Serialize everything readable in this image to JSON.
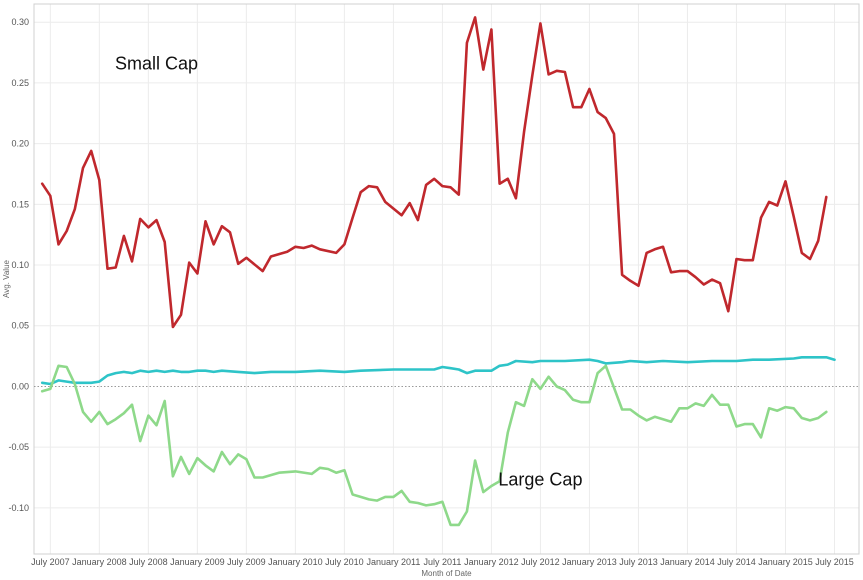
{
  "chart_data": {
    "type": "line",
    "xlabel": "Month of Date",
    "ylabel": "Avg. Value",
    "ylim": [
      -0.138,
      0.315
    ],
    "xlim": [
      "2007-05",
      "2015-10"
    ],
    "grid": true,
    "legend": "none",
    "y_ticks": [
      0.3,
      0.25,
      0.2,
      0.15,
      0.1,
      0.05,
      0.0,
      -0.05,
      -0.1
    ],
    "y_tick_labels": [
      "0.30",
      "0.25",
      "0.20",
      "0.15",
      "0.10",
      "0.05",
      "0.00",
      "-0.05",
      "-0.10"
    ],
    "x_ticks": [
      {
        "date": "2007-07",
        "label": "July 2007"
      },
      {
        "date": "2008-01",
        "label": "January 2008"
      },
      {
        "date": "2008-07",
        "label": "July 2008"
      },
      {
        "date": "2009-01",
        "label": "January 2009"
      },
      {
        "date": "2009-07",
        "label": "July 2009"
      },
      {
        "date": "2010-01",
        "label": "January 2010"
      },
      {
        "date": "2010-07",
        "label": "July 2010"
      },
      {
        "date": "2011-01",
        "label": "January 2011"
      },
      {
        "date": "2011-07",
        "label": "July 2011"
      },
      {
        "date": "2012-01",
        "label": "January 2012"
      },
      {
        "date": "2012-07",
        "label": "July 2012"
      },
      {
        "date": "2013-01",
        "label": "January 2013"
      },
      {
        "date": "2013-07",
        "label": "July 2013"
      },
      {
        "date": "2014-01",
        "label": "January 2014"
      },
      {
        "date": "2014-07",
        "label": "July 2014"
      },
      {
        "date": "2015-01",
        "label": "January 2015"
      },
      {
        "date": "2015-07",
        "label": "July 2015"
      }
    ],
    "annotations": [
      {
        "text": "Small Cap",
        "date": "2008-08",
        "value": 0.261
      },
      {
        "text": "Large Cap",
        "date": "2012-07",
        "value": -0.0815
      }
    ],
    "series": [
      {
        "color": "#c0282d",
        "points": [
          [
            "2007-06",
            0.167
          ],
          [
            "2007-07",
            0.157
          ],
          [
            "2007-08",
            0.117
          ],
          [
            "2007-09",
            0.128
          ],
          [
            "2007-10",
            0.146
          ],
          [
            "2007-11",
            0.18
          ],
          [
            "2007-12",
            0.194
          ],
          [
            "2008-01",
            0.17
          ],
          [
            "2008-02",
            0.097
          ],
          [
            "2008-03",
            0.098
          ],
          [
            "2008-04",
            0.124
          ],
          [
            "2008-05",
            0.103
          ],
          [
            "2008-06",
            0.138
          ],
          [
            "2008-07",
            0.131
          ],
          [
            "2008-08",
            0.137
          ],
          [
            "2008-09",
            0.119
          ],
          [
            "2008-10",
            0.049
          ],
          [
            "2008-11",
            0.059
          ],
          [
            "2008-12",
            0.102
          ],
          [
            "2009-01",
            0.093
          ],
          [
            "2009-02",
            0.136
          ],
          [
            "2009-03",
            0.117
          ],
          [
            "2009-04",
            0.132
          ],
          [
            "2009-05",
            0.127
          ],
          [
            "2009-06",
            0.101
          ],
          [
            "2009-07",
            0.106
          ],
          [
            "2009-09",
            0.095
          ],
          [
            "2009-10",
            0.107
          ],
          [
            "2009-11",
            0.109
          ],
          [
            "2009-12",
            0.111
          ],
          [
            "2010-01",
            0.115
          ],
          [
            "2010-02",
            0.114
          ],
          [
            "2010-03",
            0.116
          ],
          [
            "2010-04",
            0.113
          ],
          [
            "2010-06",
            0.11
          ],
          [
            "2010-07",
            0.117
          ],
          [
            "2010-08",
            0.139
          ],
          [
            "2010-09",
            0.16
          ],
          [
            "2010-10",
            0.165
          ],
          [
            "2010-11",
            0.164
          ],
          [
            "2010-12",
            0.152
          ],
          [
            "2011-02",
            0.141
          ],
          [
            "2011-03",
            0.151
          ],
          [
            "2011-04",
            0.137
          ],
          [
            "2011-05",
            0.166
          ],
          [
            "2011-06",
            0.171
          ],
          [
            "2011-07",
            0.165
          ],
          [
            "2011-08",
            0.164
          ],
          [
            "2011-09",
            0.158
          ],
          [
            "2011-10",
            0.283
          ],
          [
            "2011-11",
            0.304
          ],
          [
            "2011-12",
            0.261
          ],
          [
            "2012-01",
            0.294
          ],
          [
            "2012-02",
            0.167
          ],
          [
            "2012-03",
            0.171
          ],
          [
            "2012-04",
            0.155
          ],
          [
            "2012-05",
            0.21
          ],
          [
            "2012-06",
            0.256
          ],
          [
            "2012-07",
            0.299
          ],
          [
            "2012-08",
            0.257
          ],
          [
            "2012-09",
            0.26
          ],
          [
            "2012-10",
            0.259
          ],
          [
            "2012-11",
            0.23
          ],
          [
            "2012-12",
            0.23
          ],
          [
            "2013-01",
            0.245
          ],
          [
            "2013-02",
            0.226
          ],
          [
            "2013-03",
            0.221
          ],
          [
            "2013-04",
            0.208
          ],
          [
            "2013-05",
            0.092
          ],
          [
            "2013-06",
            0.087
          ],
          [
            "2013-07",
            0.083
          ],
          [
            "2013-08",
            0.11
          ],
          [
            "2013-09",
            0.113
          ],
          [
            "2013-10",
            0.115
          ],
          [
            "2013-11",
            0.094
          ],
          [
            "2013-12",
            0.095
          ],
          [
            "2014-01",
            0.095
          ],
          [
            "2014-02",
            0.09
          ],
          [
            "2014-03",
            0.084
          ],
          [
            "2014-04",
            0.088
          ],
          [
            "2014-05",
            0.085
          ],
          [
            "2014-06",
            0.062
          ],
          [
            "2014-07",
            0.105
          ],
          [
            "2014-08",
            0.104
          ],
          [
            "2014-09",
            0.104
          ],
          [
            "2014-10",
            0.139
          ],
          [
            "2014-11",
            0.152
          ],
          [
            "2014-12",
            0.149
          ],
          [
            "2015-01",
            0.169
          ],
          [
            "2015-02",
            0.14
          ],
          [
            "2015-03",
            0.11
          ],
          [
            "2015-04",
            0.105
          ],
          [
            "2015-05",
            0.12
          ],
          [
            "2015-06",
            0.156
          ]
        ]
      },
      {
        "color": "#2ec4c8",
        "points": [
          [
            "2007-06",
            0.003
          ],
          [
            "2007-07",
            0.002
          ],
          [
            "2007-08",
            0.005
          ],
          [
            "2007-09",
            0.004
          ],
          [
            "2007-10",
            0.003
          ],
          [
            "2007-11",
            0.003
          ],
          [
            "2007-12",
            0.003
          ],
          [
            "2008-01",
            0.004
          ],
          [
            "2008-02",
            0.009
          ],
          [
            "2008-03",
            0.011
          ],
          [
            "2008-04",
            0.012
          ],
          [
            "2008-05",
            0.011
          ],
          [
            "2008-06",
            0.013
          ],
          [
            "2008-07",
            0.012
          ],
          [
            "2008-08",
            0.013
          ],
          [
            "2008-09",
            0.012
          ],
          [
            "2008-10",
            0.013
          ],
          [
            "2008-11",
            0.012
          ],
          [
            "2008-12",
            0.012
          ],
          [
            "2009-01",
            0.013
          ],
          [
            "2009-02",
            0.013
          ],
          [
            "2009-03",
            0.012
          ],
          [
            "2009-04",
            0.013
          ],
          [
            "2009-06",
            0.012
          ],
          [
            "2009-08",
            0.011
          ],
          [
            "2009-10",
            0.012
          ],
          [
            "2010-01",
            0.012
          ],
          [
            "2010-04",
            0.013
          ],
          [
            "2010-07",
            0.012
          ],
          [
            "2010-09",
            0.013
          ],
          [
            "2011-01",
            0.014
          ],
          [
            "2011-04",
            0.014
          ],
          [
            "2011-06",
            0.014
          ],
          [
            "2011-07",
            0.016
          ],
          [
            "2011-08",
            0.015
          ],
          [
            "2011-09",
            0.014
          ],
          [
            "2011-10",
            0.011
          ],
          [
            "2011-11",
            0.013
          ],
          [
            "2012-01",
            0.013
          ],
          [
            "2012-02",
            0.017
          ],
          [
            "2012-03",
            0.018
          ],
          [
            "2012-04",
            0.021
          ],
          [
            "2012-06",
            0.02
          ],
          [
            "2012-07",
            0.021
          ],
          [
            "2012-10",
            0.021
          ],
          [
            "2013-01",
            0.022
          ],
          [
            "2013-02",
            0.021
          ],
          [
            "2013-03",
            0.019
          ],
          [
            "2013-05",
            0.02
          ],
          [
            "2013-06",
            0.021
          ],
          [
            "2013-08",
            0.02
          ],
          [
            "2013-10",
            0.021
          ],
          [
            "2014-01",
            0.02
          ],
          [
            "2014-04",
            0.021
          ],
          [
            "2014-07",
            0.021
          ],
          [
            "2014-09",
            0.022
          ],
          [
            "2014-11",
            0.022
          ],
          [
            "2015-02",
            0.023
          ],
          [
            "2015-03",
            0.024
          ],
          [
            "2015-06",
            0.024
          ],
          [
            "2015-07",
            0.022
          ]
        ]
      },
      {
        "color": "#8ed98a",
        "points": [
          [
            "2007-06",
            -0.004
          ],
          [
            "2007-07",
            -0.002
          ],
          [
            "2007-08",
            0.017
          ],
          [
            "2007-09",
            0.016
          ],
          [
            "2007-10",
            0.002
          ],
          [
            "2007-11",
            -0.021
          ],
          [
            "2007-12",
            -0.029
          ],
          [
            "2008-01",
            -0.021
          ],
          [
            "2008-02",
            -0.031
          ],
          [
            "2008-03",
            -0.027
          ],
          [
            "2008-04",
            -0.022
          ],
          [
            "2008-05",
            -0.015
          ],
          [
            "2008-06",
            -0.045
          ],
          [
            "2008-07",
            -0.024
          ],
          [
            "2008-08",
            -0.032
          ],
          [
            "2008-09",
            -0.012
          ],
          [
            "2008-10",
            -0.074
          ],
          [
            "2008-11",
            -0.058
          ],
          [
            "2008-12",
            -0.072
          ],
          [
            "2009-01",
            -0.059
          ],
          [
            "2009-02",
            -0.065
          ],
          [
            "2009-03",
            -0.07
          ],
          [
            "2009-04",
            -0.054
          ],
          [
            "2009-05",
            -0.064
          ],
          [
            "2009-06",
            -0.056
          ],
          [
            "2009-07",
            -0.06
          ],
          [
            "2009-08",
            -0.075
          ],
          [
            "2009-09",
            -0.075
          ],
          [
            "2009-11",
            -0.071
          ],
          [
            "2010-01",
            -0.07
          ],
          [
            "2010-03",
            -0.072
          ],
          [
            "2010-04",
            -0.067
          ],
          [
            "2010-05",
            -0.068
          ],
          [
            "2010-06",
            -0.071
          ],
          [
            "2010-07",
            -0.069
          ],
          [
            "2010-08",
            -0.089
          ],
          [
            "2010-09",
            -0.091
          ],
          [
            "2010-10",
            -0.093
          ],
          [
            "2010-11",
            -0.094
          ],
          [
            "2010-12",
            -0.091
          ],
          [
            "2011-01",
            -0.091
          ],
          [
            "2011-02",
            -0.086
          ],
          [
            "2011-03",
            -0.095
          ],
          [
            "2011-04",
            -0.096
          ],
          [
            "2011-05",
            -0.098
          ],
          [
            "2011-06",
            -0.097
          ],
          [
            "2011-07",
            -0.095
          ],
          [
            "2011-08",
            -0.114
          ],
          [
            "2011-09",
            -0.114
          ],
          [
            "2011-10",
            -0.103
          ],
          [
            "2011-11",
            -0.061
          ],
          [
            "2011-12",
            -0.087
          ],
          [
            "2012-01",
            -0.082
          ],
          [
            "2012-02",
            -0.078
          ],
          [
            "2012-03",
            -0.038
          ],
          [
            "2012-04",
            -0.013
          ],
          [
            "2012-05",
            -0.016
          ],
          [
            "2012-06",
            0.006
          ],
          [
            "2012-07",
            -0.002
          ],
          [
            "2012-08",
            0.008
          ],
          [
            "2012-09",
            0.0
          ],
          [
            "2012-10",
            -0.003
          ],
          [
            "2012-11",
            -0.011
          ],
          [
            "2012-12",
            -0.013
          ],
          [
            "2013-01",
            -0.013
          ],
          [
            "2013-02",
            0.011
          ],
          [
            "2013-03",
            0.017
          ],
          [
            "2013-04",
            -0.001
          ],
          [
            "2013-05",
            -0.019
          ],
          [
            "2013-06",
            -0.019
          ],
          [
            "2013-07",
            -0.024
          ],
          [
            "2013-08",
            -0.028
          ],
          [
            "2013-09",
            -0.025
          ],
          [
            "2013-10",
            -0.027
          ],
          [
            "2013-11",
            -0.029
          ],
          [
            "2013-12",
            -0.018
          ],
          [
            "2014-01",
            -0.018
          ],
          [
            "2014-02",
            -0.014
          ],
          [
            "2014-03",
            -0.016
          ],
          [
            "2014-04",
            -0.007
          ],
          [
            "2014-05",
            -0.015
          ],
          [
            "2014-06",
            -0.015
          ],
          [
            "2014-07",
            -0.033
          ],
          [
            "2014-08",
            -0.031
          ],
          [
            "2014-09",
            -0.031
          ],
          [
            "2014-10",
            -0.042
          ],
          [
            "2014-11",
            -0.018
          ],
          [
            "2014-12",
            -0.02
          ],
          [
            "2015-01",
            -0.017
          ],
          [
            "2015-02",
            -0.018
          ],
          [
            "2015-03",
            -0.026
          ],
          [
            "2015-04",
            -0.028
          ],
          [
            "2015-05",
            -0.026
          ],
          [
            "2015-06",
            -0.021
          ]
        ]
      }
    ]
  }
}
